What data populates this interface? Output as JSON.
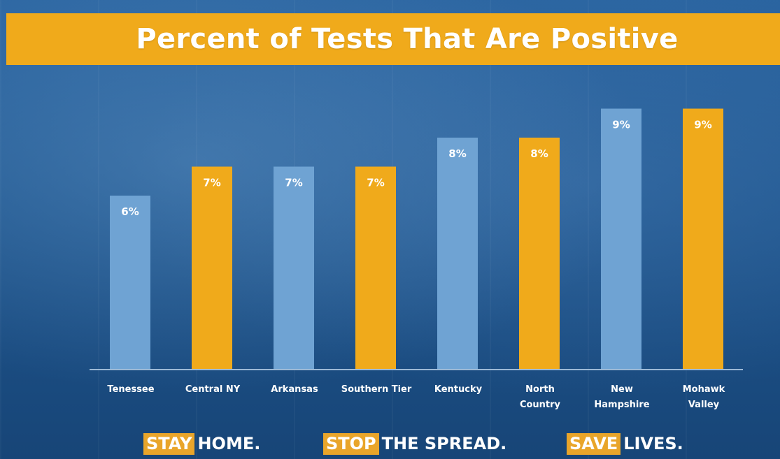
{
  "title": "Percent of Tests That Are Positive",
  "colors": {
    "banner": "#f0aa1b",
    "bar_blue": "#6fa3d3",
    "bar_gold": "#f0aa1b",
    "background": "#1f568f",
    "text": "#ffffff"
  },
  "chart_data": {
    "type": "bar",
    "title": "Percent of Tests That Are Positive",
    "categories": [
      "Tenessee",
      "Central NY",
      "Arkansas",
      "Southern Tier",
      "Kentucky",
      "North Country",
      "New Hampshire",
      "Mohawk Valley"
    ],
    "category_lines": [
      [
        "Tenessee"
      ],
      [
        "Central NY"
      ],
      [
        "Arkansas"
      ],
      [
        "Southern Tier"
      ],
      [
        "Kentucky"
      ],
      [
        "North",
        "Country"
      ],
      [
        "New",
        "Hampshire"
      ],
      [
        "Mohawk",
        "Valley"
      ]
    ],
    "values": [
      6,
      7,
      7,
      7,
      8,
      8,
      9,
      9
    ],
    "value_labels": [
      "6%",
      "7%",
      "7%",
      "7%",
      "8%",
      "8%",
      "9%",
      "9%"
    ],
    "bar_colors": [
      "#6fa3d3",
      "#f0aa1b",
      "#6fa3d3",
      "#f0aa1b",
      "#6fa3d3",
      "#f0aa1b",
      "#6fa3d3",
      "#f0aa1b"
    ],
    "xlabel": "",
    "ylabel": "",
    "ylim": [
      0,
      9
    ],
    "grid": false,
    "legend": "none"
  },
  "footer": {
    "slogans": [
      {
        "highlight": "STAY",
        "rest": "HOME."
      },
      {
        "highlight": "STOP",
        "rest": "THE SPREAD."
      },
      {
        "highlight": "SAVE",
        "rest": "LIVES."
      }
    ]
  }
}
